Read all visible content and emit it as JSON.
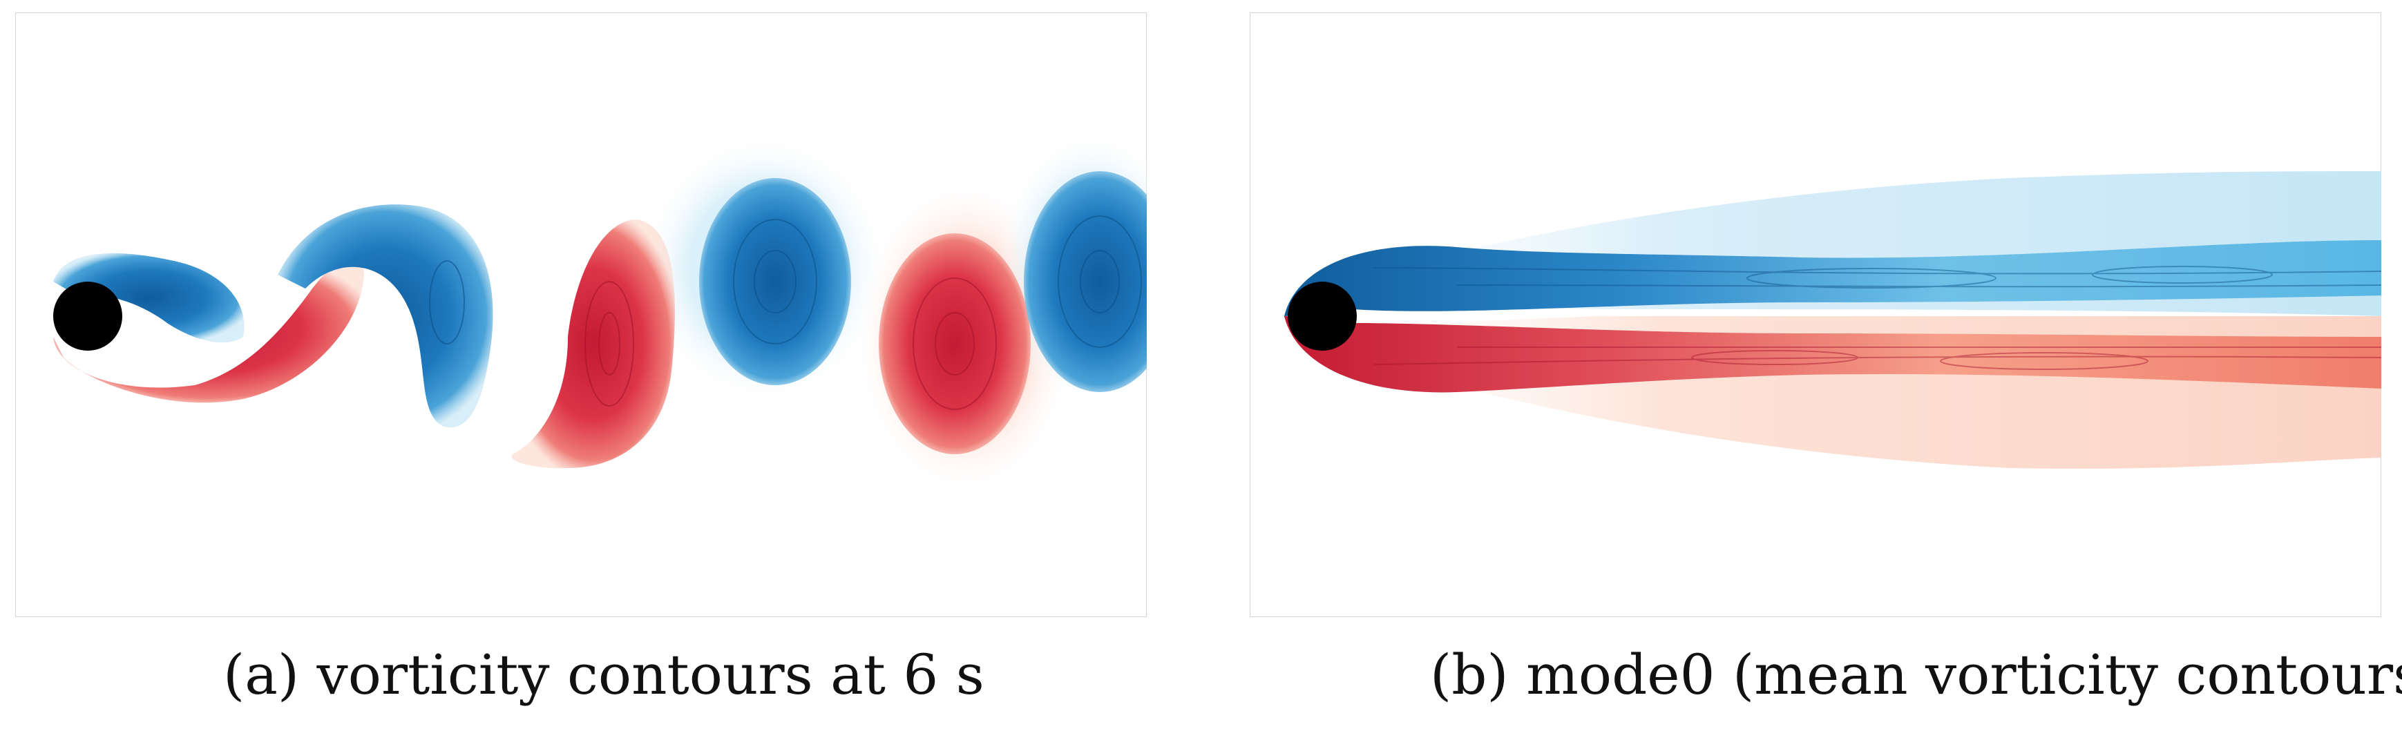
{
  "figure": {
    "panels": [
      {
        "id": "a",
        "caption": "(a) vorticity contours at 6 s"
      },
      {
        "id": "b",
        "caption": "(b) mode0 (mean vorticity contours)"
      }
    ]
  },
  "colors": {
    "positive_vorticity": "#1f6fb2",
    "positive_vorticity_light": "#b7def2",
    "negative_vorticity": "#d8283c",
    "negative_vorticity_light": "#f7c5b8",
    "cylinder": "#000000",
    "frame": "#cfcfcf",
    "background": "#ffffff"
  }
}
